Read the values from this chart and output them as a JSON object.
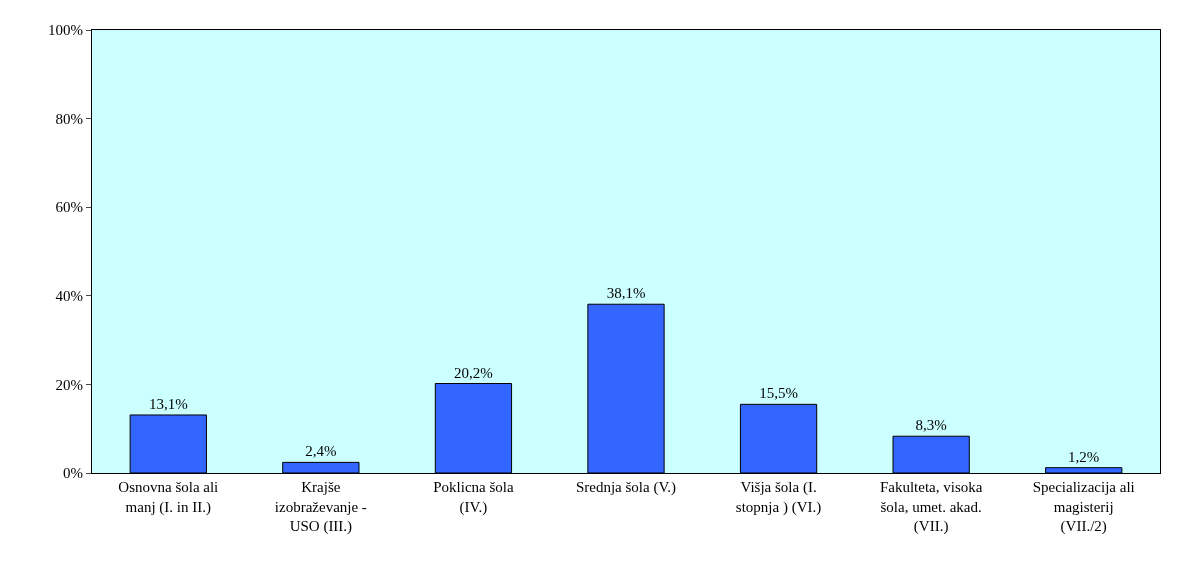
{
  "chart_data": {
    "type": "bar",
    "categories": [
      "Osnovna šola ali\nmanj (I. in II.)",
      "Krajše\nizobraževanje -\nUSO (III.)",
      "Poklicna šola\n(IV.)",
      "Srednja šola (V.)",
      "Višja šola (I.\nstopnja ) (VI.)",
      "Fakulteta, visoka\nšola, umet. akad.\n(VII.)",
      "Specializacija ali\nmagisterij\n(VII./2)"
    ],
    "values": [
      13.1,
      2.4,
      20.2,
      38.1,
      15.5,
      8.3,
      1.2
    ],
    "value_labels": [
      "13,1%",
      "2,4%",
      "20,2%",
      "38,1%",
      "15,5%",
      "8,3%",
      "1,2%"
    ],
    "color": "#3366ff",
    "ylim": [
      0,
      100
    ],
    "yticks": [
      {
        "value": 0,
        "label": "0%"
      },
      {
        "value": 20,
        "label": "20%"
      },
      {
        "value": 40,
        "label": "40%"
      },
      {
        "value": 60,
        "label": "60%"
      },
      {
        "value": 80,
        "label": "80%"
      },
      {
        "value": 100,
        "label": "100%"
      }
    ],
    "grid": false,
    "legend": false
  }
}
